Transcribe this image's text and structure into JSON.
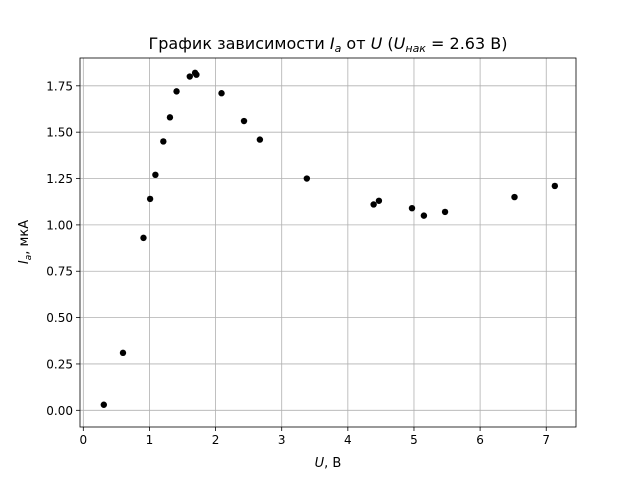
{
  "chart_data": {
    "type": "scatter",
    "title": {
      "prefix": "График зависимости ",
      "var_y": "I",
      "var_y_sub": "a",
      "middle": " от ",
      "var_x": "U",
      "paren_open": " (",
      "var_u": "U",
      "var_u_sub": "нак",
      "suffix": " = 2.63 В)"
    },
    "xlabel": {
      "var": "U",
      "rest": ", В"
    },
    "ylabel": {
      "var": "I",
      "sub": "a",
      "rest": ", мкА"
    },
    "xlim": [
      -0.05,
      7.45
    ],
    "ylim": [
      -0.09,
      1.9
    ],
    "xticks": [
      0,
      1,
      2,
      3,
      4,
      5,
      6,
      7
    ],
    "xtick_labels": [
      "0",
      "1",
      "2",
      "3",
      "4",
      "5",
      "6",
      "7"
    ],
    "yticks": [
      0.0,
      0.25,
      0.5,
      0.75,
      1.0,
      1.25,
      1.5,
      1.75
    ],
    "ytick_labels": [
      "0.00",
      "0.25",
      "0.50",
      "0.75",
      "1.00",
      "1.25",
      "1.50",
      "1.75"
    ],
    "grid": true,
    "marker_color": "#000000",
    "grid_color": "#b0b0b0",
    "points": [
      {
        "x": 0.31,
        "y": 0.03
      },
      {
        "x": 0.6,
        "y": 0.31
      },
      {
        "x": 0.91,
        "y": 0.93
      },
      {
        "x": 1.01,
        "y": 1.14
      },
      {
        "x": 1.09,
        "y": 1.27
      },
      {
        "x": 1.21,
        "y": 1.45
      },
      {
        "x": 1.31,
        "y": 1.58
      },
      {
        "x": 1.41,
        "y": 1.72
      },
      {
        "x": 1.61,
        "y": 1.8
      },
      {
        "x": 1.69,
        "y": 1.82
      },
      {
        "x": 1.71,
        "y": 1.81
      },
      {
        "x": 2.09,
        "y": 1.71
      },
      {
        "x": 2.43,
        "y": 1.56
      },
      {
        "x": 2.67,
        "y": 1.46
      },
      {
        "x": 3.38,
        "y": 1.25
      },
      {
        "x": 4.39,
        "y": 1.11
      },
      {
        "x": 4.47,
        "y": 1.13
      },
      {
        "x": 4.97,
        "y": 1.09
      },
      {
        "x": 5.15,
        "y": 1.05
      },
      {
        "x": 5.47,
        "y": 1.07
      },
      {
        "x": 6.52,
        "y": 1.15
      },
      {
        "x": 7.13,
        "y": 1.21
      }
    ]
  }
}
